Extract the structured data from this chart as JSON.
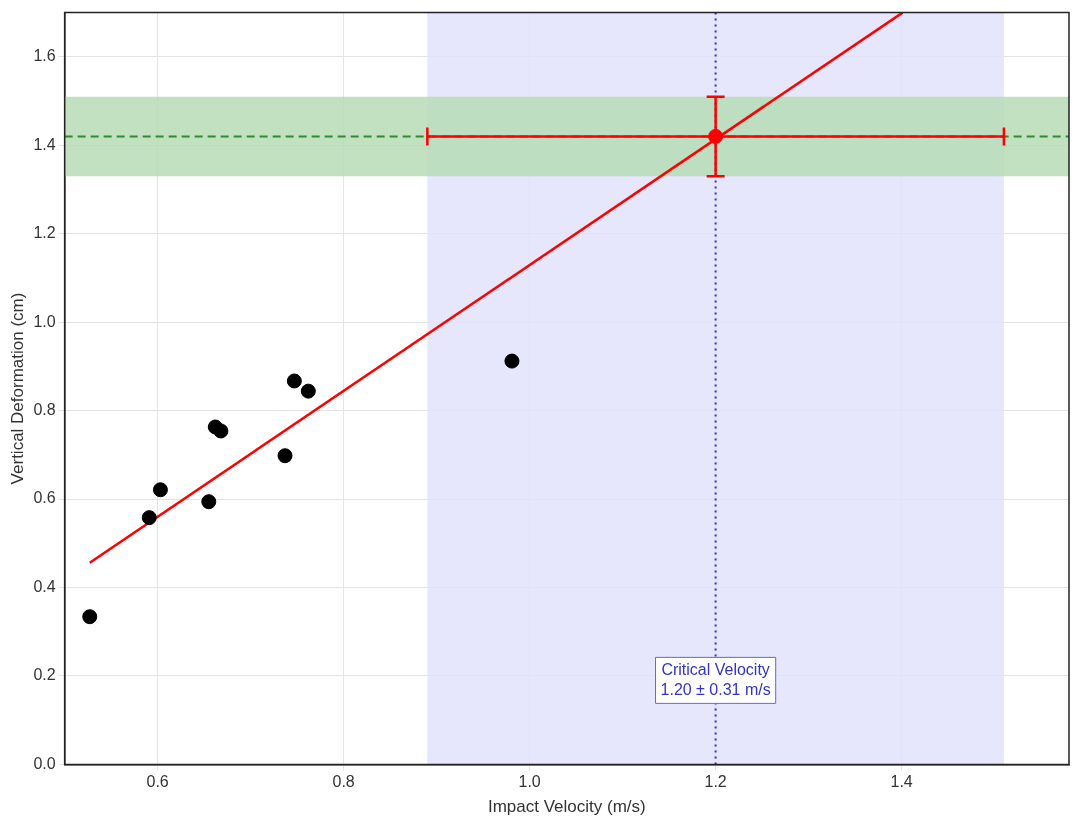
{
  "chart_data": {
    "type": "scatter",
    "xlabel": "Impact Velocity (m/s)",
    "ylabel": "Vertical Deformation (cm)",
    "xlim": [
      0.5,
      1.58
    ],
    "ylim": [
      0,
      1.7
    ],
    "xticks": [
      0.6,
      0.8,
      {
        "value": 1,
        "label": "1.0"
      },
      1.2,
      1.4
    ],
    "yticks": [
      {
        "value": 0,
        "label": "0.0"
      },
      0.2,
      0.4,
      0.6,
      0.8,
      {
        "value": 1,
        "label": "1.0"
      },
      1.2,
      1.4,
      1.6
    ],
    "grid": true,
    "marker": "circle",
    "series": [
      {
        "type": "scatter",
        "color": "#000000",
        "x": [
          0.527,
          0.591,
          0.603,
          0.655,
          0.662,
          0.668,
          0.737,
          0.747,
          0.762,
          0.981
        ],
        "values": [
          0.334,
          0.558,
          0.621,
          0.594,
          0.763,
          0.754,
          0.698,
          0.867,
          0.844,
          0.912
        ]
      },
      {
        "type": "line",
        "color": "#ff0000",
        "marker": "none",
        "x": [
          0.527,
          1.401
        ],
        "values": [
          0.456,
          1.7
        ]
      },
      {
        "type": "scatter",
        "color": "#ff0000",
        "x": [
          1.2
        ],
        "values": [
          1.42
        ],
        "errors": [
          [
            1.33,
            1.51
          ]
        ],
        "xerrors": [
          [
            0.89,
            1.51
          ]
        ]
      }
    ],
    "bands": [
      {
        "axis": "x",
        "from": 0.89,
        "to": 1.51,
        "color": "#e2e2fb"
      },
      {
        "axis": "y",
        "from": 1.33,
        "to": 1.51,
        "color": "#b6dcb6"
      }
    ],
    "ref_lines": [
      {
        "axis": "y",
        "value": 1.42,
        "color": "#2e8b2e",
        "line_style": "dashed"
      },
      {
        "axis": "x",
        "value": 1.2,
        "color": "#3333cc",
        "line_style": "dotted"
      }
    ],
    "annotations": [
      {
        "text": "Critical Velocity\n1.20 ± 0.31 m/s",
        "x": 1.2,
        "y": 0.19
      }
    ]
  }
}
